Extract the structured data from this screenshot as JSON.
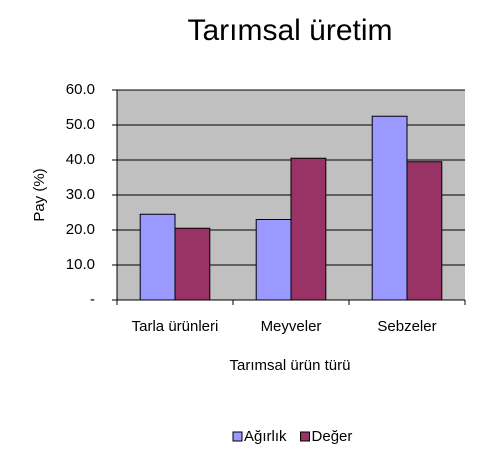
{
  "chart_data": {
    "type": "bar",
    "title": "Tarımsal üretim",
    "xlabel": "Tarımsal ürün türü",
    "ylabel": "Pay (%)",
    "categories": [
      "Tarla ürünleri",
      "Meyveler",
      "Sebzeler"
    ],
    "series": [
      {
        "name": "Ağırlık",
        "color": "#9999ff",
        "values": [
          24.5,
          23,
          52.5
        ]
      },
      {
        "name": "Değer",
        "color": "#993366",
        "values": [
          20.5,
          40.5,
          39.5
        ]
      }
    ],
    "ylim": [
      0,
      60
    ],
    "yticks": [
      {
        "value": 0,
        "label": "-"
      },
      {
        "value": 10,
        "label": "10.0"
      },
      {
        "value": 20,
        "label": "20.0"
      },
      {
        "value": 30,
        "label": "30.0"
      },
      {
        "value": 40,
        "label": "40.0"
      },
      {
        "value": 50,
        "label": "50.0"
      },
      {
        "value": 60,
        "label": "60.0"
      }
    ],
    "grid": true,
    "legend": "bottom",
    "background": "#c0c0c0"
  }
}
